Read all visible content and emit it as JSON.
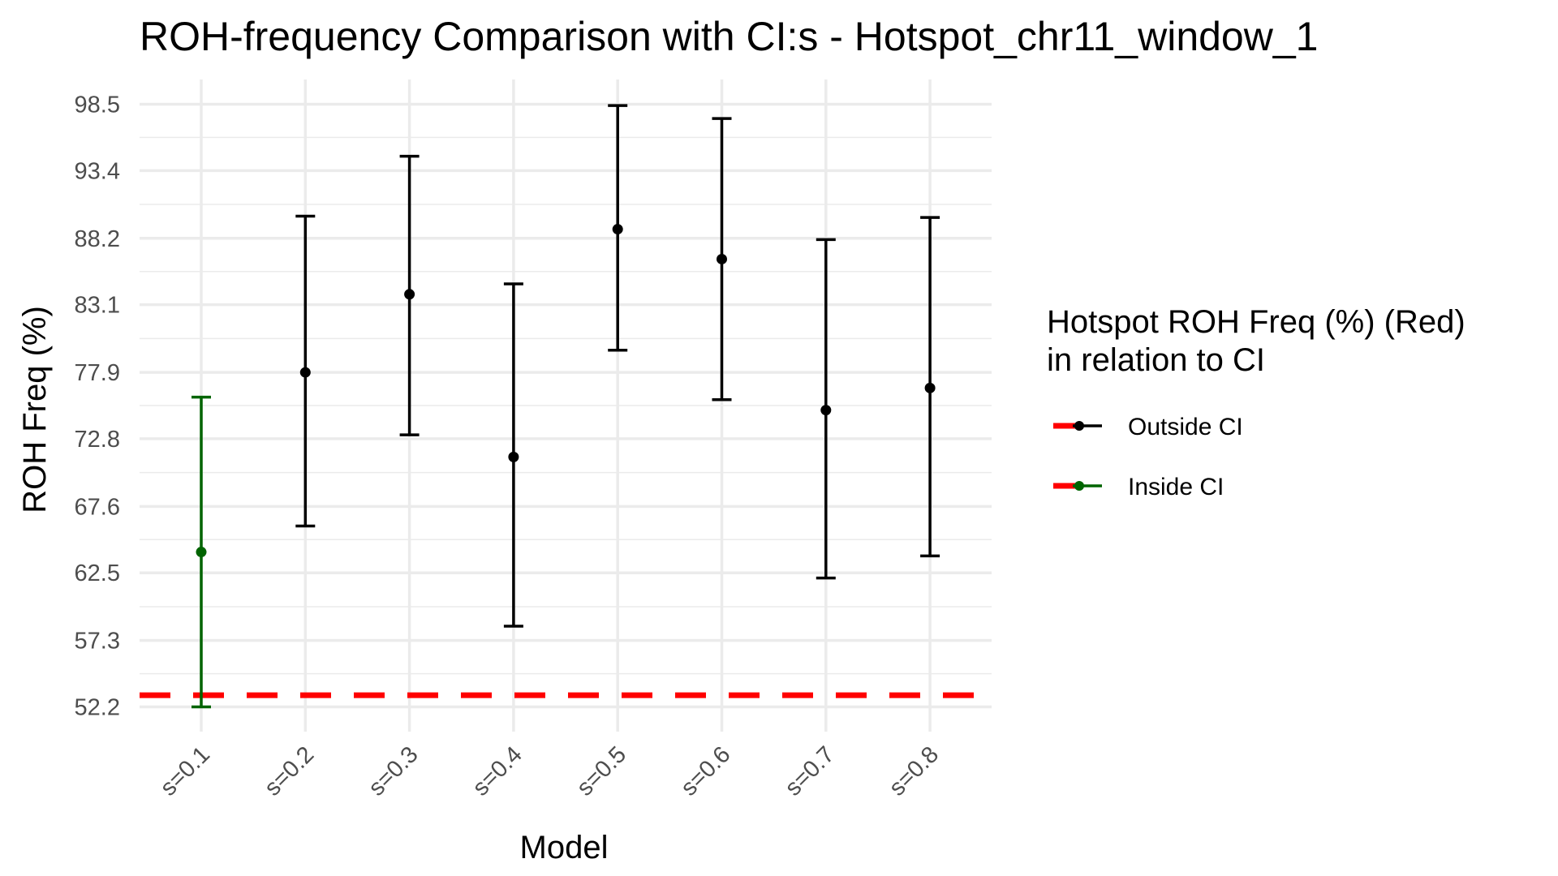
{
  "chart_data": {
    "type": "scatter",
    "title": "ROH-frequency Comparison with CI:s -  Hotspot_chr11_window_1",
    "xlabel": "Model",
    "ylabel": "ROH Freq (%)",
    "categories": [
      "s=0.1",
      "s=0.2",
      "s=0.3",
      "s=0.4",
      "s=0.5",
      "s=0.6",
      "s=0.7",
      "s=0.8"
    ],
    "y_ticks": [
      "52.2",
      "57.3",
      "62.5",
      "67.6",
      "72.8",
      "77.9",
      "83.1",
      "88.2",
      "93.4",
      "98.5"
    ],
    "ylim": [
      50.3,
      100.4
    ],
    "grid": true,
    "series": [
      {
        "values": [
          64.1,
          77.9,
          83.9,
          71.4,
          88.9,
          86.6,
          75.0,
          76.7
        ],
        "ci_lower": [
          52.2,
          66.1,
          73.1,
          58.4,
          79.6,
          75.8,
          62.1,
          63.8
        ],
        "ci_upper": [
          76.0,
          89.9,
          94.5,
          84.7,
          98.4,
          97.4,
          88.1,
          89.8
        ],
        "status": [
          "Inside CI",
          "Outside CI",
          "Outside CI",
          "Outside CI",
          "Outside CI",
          "Outside CI",
          "Outside CI",
          "Outside CI"
        ]
      }
    ],
    "reference_line": {
      "value": 53.1,
      "color": "#ff0000",
      "style": "dashed"
    },
    "legend": {
      "title_line1": "Hotspot ROH Freq (%) (Red)",
      "title_line2": "in relation to CI",
      "placement": "right",
      "items": [
        {
          "label": "Outside CI",
          "color": "#000000"
        },
        {
          "label": "Inside CI",
          "color": "#006400"
        }
      ]
    },
    "colors": {
      "outside": "#000000",
      "inside": "#006400",
      "reference": "#ff0000",
      "grid": "#ebebeb"
    }
  }
}
